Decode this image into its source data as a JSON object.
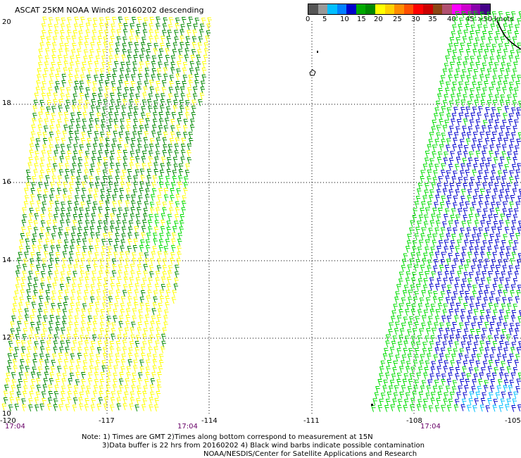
{
  "header": {
    "title": "ASCAT 25KM NOAA Winds 20160202 descending"
  },
  "colorbar": {
    "colors": [
      "#555555",
      "#999999",
      "#00bfff",
      "#0080ff",
      "#0000cc",
      "#00aa00",
      "#008800",
      "#ffff00",
      "#ffd000",
      "#ff8c00",
      "#ff5000",
      "#ff0000",
      "#cc0000",
      "#8b4513",
      "#b05070",
      "#ff00ff",
      "#cc00cc",
      "#8800aa",
      "#440088"
    ],
    "labels": [
      "0",
      "5",
      "10",
      "15",
      "20",
      "25",
      "30",
      "35",
      "40",
      "45",
      ">50 knots"
    ]
  },
  "axes": {
    "lat_labels": [
      "20",
      "18",
      "16",
      "14",
      "12",
      "10"
    ],
    "lon_labels": [
      "-120",
      "-117",
      "-114",
      "-111",
      "-108",
      "-105"
    ]
  },
  "times": [
    "17:04",
    "17:04",
    "17:04"
  ],
  "notes": {
    "line1": "Note: 1) Times are GMT 2)Times along bottom correspond to measurement at 15N",
    "line2": "3)Data buffer is 22 hrs from 20160202 4) Black wind barbs indicate possible contamination",
    "line3": "NOAA/NESDIS/Center for Satellite Applications and Research"
  },
  "wind_colors": {
    "yellow": "#ffff00",
    "light_green": "#00dd00",
    "dark_green": "#008800",
    "blue": "#0000cc",
    "light_blue": "#00bfff"
  }
}
